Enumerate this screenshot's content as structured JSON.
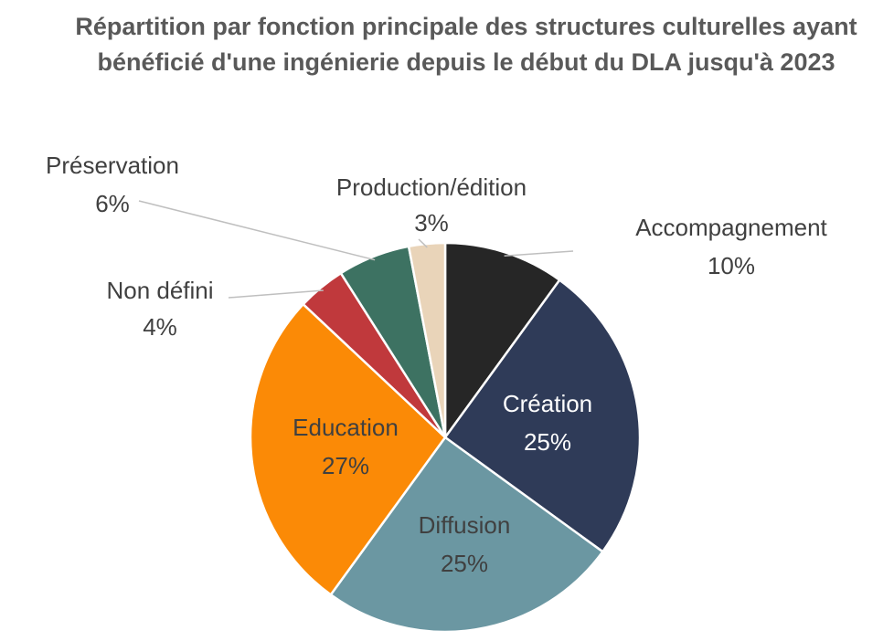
{
  "chart_data": {
    "type": "pie",
    "title": "Répartition par fonction principale des structures culturelles ayant bénéficié d'une ingénierie depuis le début du DLA jusqu'à 2023",
    "categories": [
      "Accompagnement",
      "Création",
      "Diffusion",
      "Education",
      "Non défini",
      "Préservation",
      "Production/édition"
    ],
    "values": [
      10,
      25,
      25,
      27,
      4,
      6,
      3
    ],
    "value_labels": [
      "10%",
      "25%",
      "25%",
      "27%",
      "4%",
      "6%",
      "3%"
    ],
    "colors": [
      "#262626",
      "#2f3b58",
      "#6b97a2",
      "#fb8a06",
      "#c0393c",
      "#3d7262",
      "#e9d4b9"
    ]
  }
}
